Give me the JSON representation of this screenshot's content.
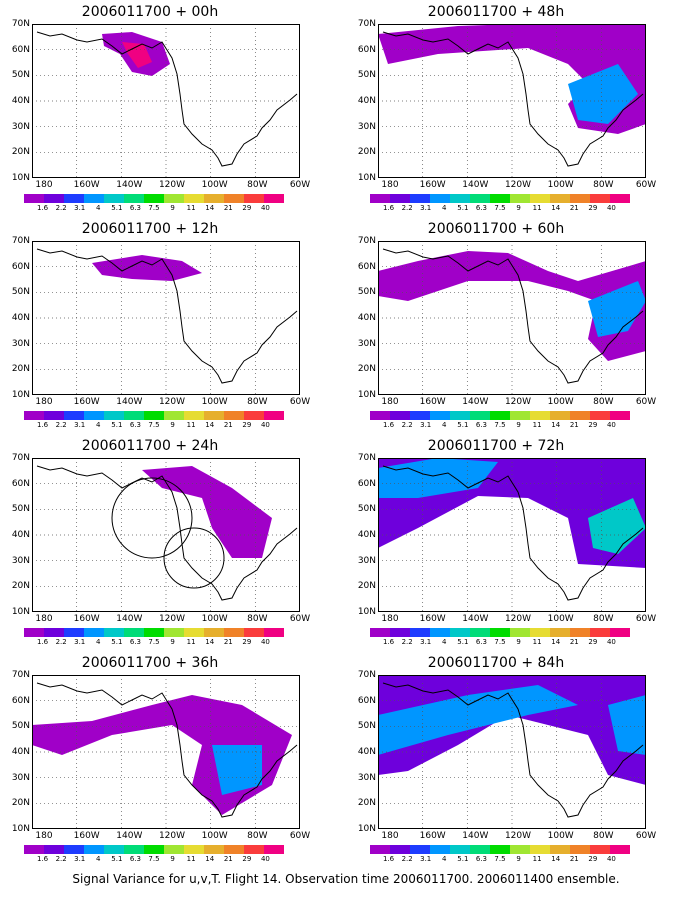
{
  "panels": [
    {
      "title": "2006011700 + 00h",
      "level": "00h"
    },
    {
      "title": "2006011700 + 48h",
      "level": "48h"
    },
    {
      "title": "2006011700 + 12h",
      "level": "12h"
    },
    {
      "title": "2006011700 + 60h",
      "level": "60h"
    },
    {
      "title": "2006011700 + 24h",
      "level": "24h"
    },
    {
      "title": "2006011700 + 72h",
      "level": "72h"
    },
    {
      "title": "2006011700 + 36h",
      "level": "36h"
    },
    {
      "title": "2006011700 + 84h",
      "level": "84h"
    }
  ],
  "axes": {
    "lat_labels": [
      "70N",
      "60N",
      "50N",
      "40N",
      "30N",
      "20N",
      "10N"
    ],
    "lon_labels": [
      "180",
      "160W",
      "140W",
      "120W",
      "100W",
      "80W",
      "60W"
    ]
  },
  "colorbar": {
    "labels": [
      "1.6",
      "2.2",
      "3.1",
      "4",
      "5.1",
      "6.3",
      "7.5",
      "9",
      "11",
      "14",
      "21",
      "29",
      "40"
    ],
    "colors": [
      "#a000c8",
      "#6e00dc",
      "#1e3cff",
      "#0096ff",
      "#00c8c8",
      "#00dc78",
      "#00dc00",
      "#a0e632",
      "#e6dc32",
      "#e6af2d",
      "#f08228",
      "#fa3c3c",
      "#f00082"
    ]
  },
  "caption": "Signal Variance for u,v,T. Flight 14. Observation time 2006011700. 2006011400 ensemble."
}
